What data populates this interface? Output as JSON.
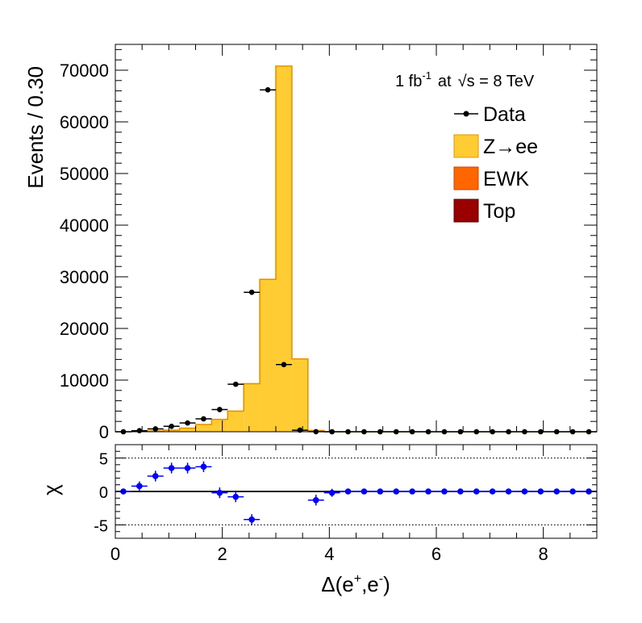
{
  "chart_data": [
    {
      "type": "bar",
      "panel": "main",
      "ylabel": "Events / 0.30",
      "annotation": {
        "lumi": "1 fb",
        "lumi_exp": "-1",
        "at": "at",
        "sqrt": "√s = 8 TeV"
      },
      "xlim": [
        0,
        9
      ],
      "ylim": [
        0,
        75000
      ],
      "yticks": [
        0,
        10000,
        20000,
        30000,
        40000,
        50000,
        60000,
        70000
      ],
      "ytick_labels": [
        "0",
        "10000",
        "20000",
        "30000",
        "40000",
        "50000",
        "60000",
        "70000"
      ],
      "bin_width": 0.3,
      "bin_edges": [
        0,
        0.3,
        0.6,
        0.9,
        1.2,
        1.5,
        1.8,
        2.1,
        2.4,
        2.7,
        3.0,
        3.3,
        3.6,
        3.9,
        4.2,
        4.5,
        4.8,
        5.1,
        5.4,
        5.7,
        6.0,
        6.3,
        6.6,
        6.9,
        7.2,
        7.5,
        7.8,
        8.1,
        8.4,
        8.7,
        9.0
      ],
      "legend": [
        {
          "label": "Data",
          "kind": "marker",
          "color": "#000000"
        },
        {
          "label": "Z→ee",
          "kind": "fill",
          "color": "#ffcc33",
          "edge": "#e59400"
        },
        {
          "label": "EWK",
          "kind": "fill",
          "color": "#ff6600",
          "edge": "#cc4400"
        },
        {
          "label": "Top",
          "kind": "fill",
          "color": "#990000",
          "edge": "#550000"
        }
      ],
      "legend_position": "top-right",
      "series": [
        {
          "name": "Z→ee",
          "values": [
            0,
            50,
            150,
            300,
            700,
            1400,
            2400,
            4000,
            9300,
            29500,
            70800,
            14100,
            250,
            0,
            0,
            0,
            0,
            0,
            0,
            0,
            0,
            0,
            0,
            0,
            0,
            0,
            0,
            0,
            0,
            0
          ]
        },
        {
          "name": "Data",
          "values": [
            0,
            200,
            550,
            1050,
            1700,
            2500,
            4300,
            9200,
            27000,
            66200,
            13000,
            300,
            10,
            0,
            0,
            0,
            0,
            0,
            0,
            0,
            0,
            0,
            0,
            0,
            0,
            0,
            0,
            0,
            0,
            0
          ],
          "x": [
            0.15,
            0.45,
            0.75,
            1.05,
            1.35,
            1.65,
            1.95,
            2.25,
            2.55,
            2.85,
            3.15,
            3.45,
            3.75,
            4.05,
            4.35,
            4.65,
            4.95,
            5.25,
            5.55,
            5.85,
            6.15,
            6.45,
            6.75,
            7.05,
            7.35,
            7.65,
            7.95,
            8.25,
            8.55,
            8.85
          ]
        }
      ]
    },
    {
      "type": "scatter",
      "panel": "ratio",
      "ylabel": "χ",
      "xlabel": "Δ(e⁺,e⁻)",
      "xlabel_parts": {
        "pre": "Δ(e",
        "sup1": "+",
        "mid": ",e",
        "sup2": "-",
        "post": ")"
      },
      "xlim": [
        0,
        9
      ],
      "ylim": [
        -7,
        7
      ],
      "xticks": [
        0,
        2,
        4,
        6,
        8
      ],
      "xtick_labels": [
        "0",
        "2",
        "4",
        "6",
        "8"
      ],
      "yticks": [
        -5,
        0,
        5
      ],
      "ytick_labels": [
        "-5",
        "0",
        "5"
      ],
      "reference_lines": [
        5,
        0,
        -5
      ],
      "color": "#0000ff",
      "x": [
        0.15,
        0.45,
        0.75,
        1.05,
        1.35,
        1.65,
        1.95,
        2.25,
        2.55,
        3.75,
        4.05,
        4.35,
        4.65,
        4.95,
        5.25,
        5.55,
        5.85,
        6.15,
        6.45,
        6.75,
        7.05,
        7.35,
        7.65,
        7.95,
        8.25,
        8.55,
        8.85
      ],
      "values": [
        0,
        0.8,
        2.3,
        3.5,
        3.5,
        3.7,
        -0.2,
        -0.8,
        -4.2,
        -1.3,
        -0.2,
        0,
        0,
        0,
        0,
        0,
        0,
        0,
        0,
        0,
        0,
        0,
        0,
        0,
        0,
        0,
        0
      ],
      "errors": [
        0.3,
        0.7,
        0.8,
        0.8,
        0.8,
        0.8,
        0.8,
        0.8,
        0.8,
        0.8,
        0.6,
        0.3,
        0.3,
        0.3,
        0.3,
        0.3,
        0.3,
        0.3,
        0.3,
        0.3,
        0.3,
        0.3,
        0.3,
        0.3,
        0.3,
        0.3,
        0.3
      ]
    }
  ]
}
